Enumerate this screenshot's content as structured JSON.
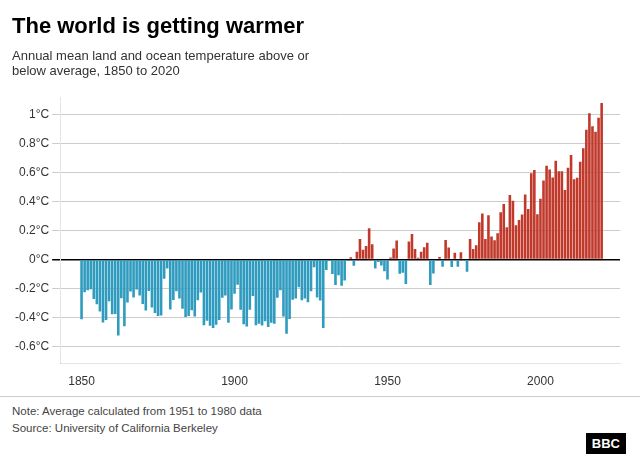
{
  "chart_data": {
    "type": "bar",
    "title": "The world is getting warmer",
    "subtitle": "Annual mean land and ocean temperature above or\nbelow average, 1850 to 2020",
    "annotations": [
      "Note: Average calculated from 1951 to 1980 data",
      "Source: University of California Berkeley",
      "BBC"
    ],
    "x": [
      1850,
      1851,
      1852,
      1853,
      1854,
      1855,
      1856,
      1857,
      1858,
      1859,
      1860,
      1861,
      1862,
      1863,
      1864,
      1865,
      1866,
      1867,
      1868,
      1869,
      1870,
      1871,
      1872,
      1873,
      1874,
      1875,
      1876,
      1877,
      1878,
      1879,
      1880,
      1881,
      1882,
      1883,
      1884,
      1885,
      1886,
      1887,
      1888,
      1889,
      1890,
      1891,
      1892,
      1893,
      1894,
      1895,
      1896,
      1897,
      1898,
      1899,
      1900,
      1901,
      1902,
      1903,
      1904,
      1905,
      1906,
      1907,
      1908,
      1909,
      1910,
      1911,
      1912,
      1913,
      1914,
      1915,
      1916,
      1917,
      1918,
      1919,
      1920,
      1921,
      1922,
      1923,
      1924,
      1925,
      1926,
      1927,
      1928,
      1929,
      1930,
      1931,
      1932,
      1933,
      1934,
      1935,
      1936,
      1937,
      1938,
      1939,
      1940,
      1941,
      1942,
      1943,
      1944,
      1945,
      1946,
      1947,
      1948,
      1949,
      1950,
      1951,
      1952,
      1953,
      1954,
      1955,
      1956,
      1957,
      1958,
      1959,
      1960,
      1961,
      1962,
      1963,
      1964,
      1965,
      1966,
      1967,
      1968,
      1969,
      1970,
      1971,
      1972,
      1973,
      1974,
      1975,
      1976,
      1977,
      1978,
      1979,
      1980,
      1981,
      1982,
      1983,
      1984,
      1985,
      1986,
      1987,
      1988,
      1989,
      1990,
      1991,
      1992,
      1993,
      1994,
      1995,
      1996,
      1997,
      1998,
      1999,
      2000,
      2001,
      2002,
      2003,
      2004,
      2005,
      2006,
      2007,
      2008,
      2009,
      2010,
      2011,
      2012,
      2013,
      2014,
      2015,
      2016,
      2017,
      2018,
      2019,
      2020
    ],
    "values": [
      -0.414,
      -0.227,
      -0.212,
      -0.206,
      -0.273,
      -0.31,
      -0.359,
      -0.436,
      -0.418,
      -0.289,
      -0.378,
      -0.377,
      -0.525,
      -0.268,
      -0.462,
      -0.297,
      -0.221,
      -0.262,
      -0.207,
      -0.249,
      -0.308,
      -0.352,
      -0.218,
      -0.332,
      -0.37,
      -0.39,
      -0.387,
      -0.133,
      -0.063,
      -0.346,
      -0.28,
      -0.219,
      -0.269,
      -0.341,
      -0.398,
      -0.391,
      -0.351,
      -0.395,
      -0.282,
      -0.229,
      -0.454,
      -0.424,
      -0.459,
      -0.473,
      -0.451,
      -0.418,
      -0.265,
      -0.249,
      -0.438,
      -0.345,
      -0.237,
      -0.175,
      -0.347,
      -0.448,
      -0.463,
      -0.348,
      -0.252,
      -0.455,
      -0.445,
      -0.457,
      -0.427,
      -0.466,
      -0.437,
      -0.445,
      -0.265,
      -0.213,
      -0.395,
      -0.513,
      -0.412,
      -0.278,
      -0.27,
      -0.192,
      -0.282,
      -0.269,
      -0.296,
      -0.219,
      -0.054,
      -0.263,
      -0.284,
      -0.473,
      -0.073,
      -0.011,
      -0.101,
      -0.176,
      -0.108,
      -0.181,
      -0.145,
      -0.009,
      0.015,
      -0.044,
      0.053,
      0.142,
      0.067,
      0.093,
      0.217,
      0.106,
      -0.062,
      -0.018,
      -0.042,
      -0.082,
      -0.139,
      0.014,
      0.076,
      0.132,
      -0.098,
      -0.092,
      -0.17,
      0.125,
      0.176,
      0.072,
      0.013,
      0.054,
      0.085,
      0.116,
      -0.176,
      -0.097,
      -0.011,
      0.018,
      -0.05,
      0.135,
      0.083,
      -0.052,
      0.046,
      -0.05,
      0.05,
      -0.008,
      -0.085,
      0.142,
      0.073,
      0.099,
      0.258,
      0.319,
      0.142,
      0.307,
      0.159,
      0.134,
      0.181,
      0.327,
      0.384,
      0.224,
      0.446,
      0.406,
      0.237,
      0.274,
      0.311,
      0.45,
      0.349,
      0.596,
      0.619,
      0.313,
      0.42,
      0.546,
      0.648,
      0.623,
      0.568,
      0.683,
      0.611,
      0.611,
      0.48,
      0.635,
      0.723,
      0.556,
      0.565,
      0.677,
      0.769,
      0.897,
      1.011,
      0.921,
      0.883,
      0.98,
      1.083
    ],
    "colors": [
      "#2e9bbf",
      "#2e9bbf",
      "#2e9bbf",
      "#2e9bbf",
      "#2e9bbf",
      "#2e9bbf",
      "#2e9bbf",
      "#2e9bbf",
      "#2e9bbf",
      "#2e9bbf",
      "#2e9bbf",
      "#2e9bbf",
      "#2e9bbf",
      "#2e9bbf",
      "#2e9bbf",
      "#2e9bbf",
      "#2e9bbf",
      "#2e9bbf",
      "#2e9bbf",
      "#2e9bbf",
      "#2e9bbf",
      "#2e9bbf",
      "#2e9bbf",
      "#2e9bbf",
      "#2e9bbf",
      "#2e9bbf",
      "#2e9bbf",
      "#2e9bbf",
      "#2e9bbf",
      "#2e9bbf",
      "#2e9bbf",
      "#2e9bbf",
      "#2e9bbf",
      "#2e9bbf",
      "#2e9bbf",
      "#2e9bbf",
      "#2e9bbf",
      "#2e9bbf",
      "#2e9bbf",
      "#2e9bbf",
      "#2e9bbf",
      "#2e9bbf",
      "#2e9bbf",
      "#2e9bbf",
      "#2e9bbf",
      "#2e9bbf",
      "#2e9bbf",
      "#2e9bbf",
      "#2e9bbf",
      "#2e9bbf",
      "#2e9bbf",
      "#2e9bbf",
      "#2e9bbf",
      "#2e9bbf",
      "#2e9bbf",
      "#2e9bbf",
      "#2e9bbf",
      "#2e9bbf",
      "#2e9bbf",
      "#2e9bbf",
      "#2e9bbf",
      "#2e9bbf",
      "#2e9bbf",
      "#2e9bbf",
      "#2e9bbf",
      "#2e9bbf",
      "#2e9bbf",
      "#2e9bbf",
      "#2e9bbf",
      "#2e9bbf",
      "#2e9bbf",
      "#2e9bbf",
      "#2e9bbf",
      "#2e9bbf",
      "#2e9bbf",
      "#2e9bbf",
      "#2e9bbf",
      "#2e9bbf",
      "#2e9bbf",
      "#2e9bbf",
      "#2e9bbf",
      "#2e9bbf",
      "#2e9bbf",
      "#2e9bbf",
      "#2e9bbf",
      "#2e9bbf",
      "#2e9bbf",
      "#2e9bbf",
      "#c0392b",
      "#2e9bbf",
      "#c0392b",
      "#c0392b",
      "#c0392b",
      "#c0392b",
      "#c0392b",
      "#c0392b",
      "#2e9bbf",
      "#2e9bbf",
      "#2e9bbf",
      "#2e9bbf",
      "#2e9bbf",
      "#c0392b",
      "#c0392b",
      "#c0392b",
      "#2e9bbf",
      "#2e9bbf",
      "#2e9bbf",
      "#c0392b",
      "#c0392b",
      "#c0392b",
      "#c0392b",
      "#c0392b",
      "#c0392b",
      "#c0392b",
      "#2e9bbf",
      "#2e9bbf",
      "#2e9bbf",
      "#c0392b",
      "#2e9bbf",
      "#c0392b",
      "#c0392b",
      "#2e9bbf",
      "#c0392b",
      "#2e9bbf",
      "#c0392b",
      "#2e9bbf",
      "#2e9bbf",
      "#c0392b",
      "#c0392b",
      "#c0392b",
      "#c0392b",
      "#c0392b",
      "#c0392b",
      "#c0392b",
      "#c0392b",
      "#c0392b",
      "#c0392b",
      "#c0392b",
      "#c0392b",
      "#c0392b",
      "#c0392b",
      "#c0392b",
      "#c0392b",
      "#c0392b",
      "#c0392b",
      "#c0392b",
      "#c0392b",
      "#c0392b",
      "#c0392b",
      "#c0392b",
      "#c0392b",
      "#c0392b",
      "#c0392b",
      "#c0392b",
      "#c0392b",
      "#c0392b",
      "#c0392b",
      "#c0392b",
      "#c0392b",
      "#c0392b",
      "#c0392b",
      "#c0392b",
      "#c0392b",
      "#c0392b",
      "#c0392b",
      "#c0392b",
      "#c0392b",
      "#c0392b",
      "#c0392b",
      "#c0392b",
      "#c0392b"
    ],
    "xlim": [
      1843,
      2026
    ],
    "xticks": [
      1850,
      1900,
      1950,
      2000
    ],
    "ylim": [
      -0.72,
      1.12
    ],
    "yticks": [
      {
        "value": -0.6,
        "label": "-0.6°C"
      },
      {
        "value": -0.4,
        "label": "-0.4°C"
      },
      {
        "value": -0.2,
        "label": "-0.2°C"
      },
      {
        "value": 0,
        "label": "0°C"
      },
      {
        "value": 0.2,
        "label": "0.2°C"
      },
      {
        "value": 0.4,
        "label": "0.4°C"
      },
      {
        "value": 0.6,
        "label": "0.6°C"
      },
      {
        "value": 0.8,
        "label": "0.8°C"
      },
      {
        "value": 1.0,
        "label": "1°C"
      }
    ],
    "grid": "y"
  }
}
